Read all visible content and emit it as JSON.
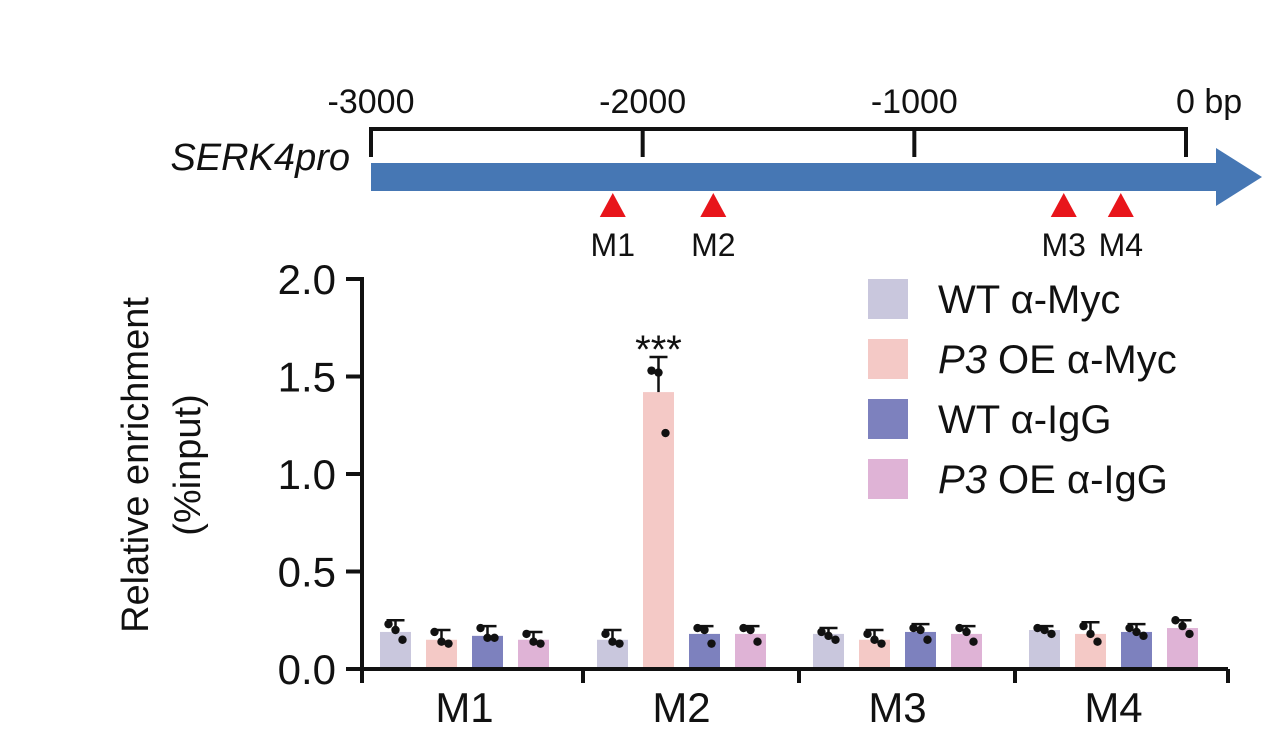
{
  "promoter": {
    "name": "SERK4pro",
    "ticks": [
      {
        "pos": -3000,
        "label": "-3000"
      },
      {
        "pos": -2000,
        "label": "-2000"
      },
      {
        "pos": -1000,
        "label": "-1000"
      },
      {
        "pos": 0,
        "label": "0 bp"
      }
    ],
    "motifs": [
      {
        "label": "M1",
        "pos": -2110
      },
      {
        "label": "M2",
        "pos": -1740
      },
      {
        "label": "M3",
        "pos": -450
      },
      {
        "label": "M4",
        "pos": -240
      }
    ],
    "arrow_color": "#4677b4",
    "motif_color": "#e8151b"
  },
  "chart_data": {
    "type": "bar",
    "ylabel_line1": "Relative enrichment",
    "ylabel_line2": "(%input)",
    "ylim": [
      0,
      2.0
    ],
    "yticks": [
      {
        "value": 0.0,
        "label": "0.0"
      },
      {
        "value": 0.5,
        "label": "0.5"
      },
      {
        "value": 1.0,
        "label": "1.0"
      },
      {
        "value": 1.5,
        "label": "1.5"
      },
      {
        "value": 2.0,
        "label": "2.0"
      }
    ],
    "categories": [
      "M1",
      "M2",
      "M3",
      "M4"
    ],
    "legend_position": "top-right",
    "series": [
      {
        "name_italic": "",
        "name_rest": "WT α-Myc",
        "color": "#c9c7dd",
        "values": [
          0.19,
          0.15,
          0.18,
          0.2
        ],
        "errors": [
          0.06,
          0.05,
          0.03,
          0.02
        ],
        "points": [
          [
            0.23,
            0.2,
            0.15
          ],
          [
            0.18,
            0.14,
            0.13
          ],
          [
            0.19,
            0.17,
            0.15
          ],
          [
            0.21,
            0.2,
            0.18
          ]
        ]
      },
      {
        "name_italic": "P3",
        "name_rest": " OE α-Myc",
        "color": "#f4c9c6",
        "values": [
          0.15,
          1.42,
          0.15,
          0.18
        ],
        "errors": [
          0.05,
          0.18,
          0.05,
          0.06
        ],
        "points": [
          [
            0.19,
            0.14,
            0.13
          ],
          [
            1.53,
            1.52,
            1.21
          ],
          [
            0.18,
            0.15,
            0.13
          ],
          [
            0.22,
            0.18,
            0.14
          ]
        ]
      },
      {
        "name_italic": "",
        "name_rest": "WT α-IgG",
        "color": "#7d81be",
        "values": [
          0.17,
          0.18,
          0.19,
          0.19
        ],
        "errors": [
          0.05,
          0.04,
          0.04,
          0.04
        ],
        "points": [
          [
            0.21,
            0.16,
            0.16
          ],
          [
            0.21,
            0.2,
            0.13
          ],
          [
            0.21,
            0.2,
            0.15
          ],
          [
            0.21,
            0.19,
            0.17
          ]
        ]
      },
      {
        "name_italic": "P3",
        "name_rest": " OE α-IgG",
        "color": "#dfb3d6",
        "values": [
          0.15,
          0.18,
          0.18,
          0.21
        ],
        "errors": [
          0.04,
          0.04,
          0.04,
          0.04
        ],
        "points": [
          [
            0.18,
            0.14,
            0.13
          ],
          [
            0.21,
            0.2,
            0.14
          ],
          [
            0.21,
            0.19,
            0.14
          ],
          [
            0.25,
            0.22,
            0.18
          ]
        ]
      }
    ],
    "annotations": [
      {
        "category": "M2",
        "series_index": 1,
        "text": "***"
      }
    ]
  }
}
